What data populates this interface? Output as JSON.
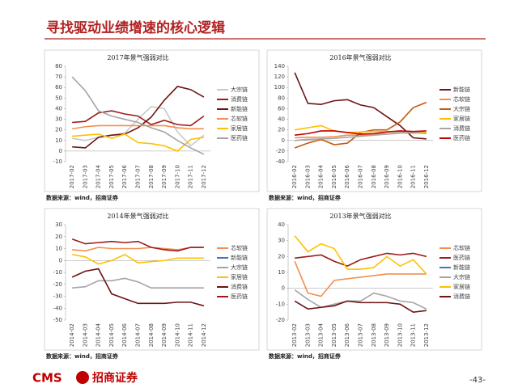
{
  "page_title": "寻找驱动业绩增速的核心逻辑",
  "footer": {
    "logo": "CMS",
    "brand": "招商证券",
    "page": "-43-"
  },
  "chart_data": [
    {
      "type": "line",
      "title": "2017年景气强弱对比",
      "source": "数据来源：wind，招商证券",
      "legend": "right",
      "categories": [
        "2017-02",
        "2017-03",
        "2017-04",
        "2017-05",
        "2017-06",
        "2017-07",
        "2017-08",
        "2017-09",
        "2017-10",
        "2017-11",
        "2017-12"
      ],
      "ylim": [
        -10,
        80
      ],
      "yticks": [
        -10,
        0,
        10,
        20,
        30,
        40,
        50,
        60,
        70,
        80
      ],
      "series": [
        {
          "name": "大宗链",
          "color": "#c9c9c9",
          "values": [
            12,
            10,
            13,
            15,
            17,
            30,
            42,
            40,
            18,
            5,
            15
          ]
        },
        {
          "name": "消费链",
          "color": "#9e1b1b",
          "values": [
            27,
            28,
            36,
            38,
            35,
            33,
            25,
            29,
            25,
            24,
            33
          ]
        },
        {
          "name": "新能链",
          "color": "#6e1414",
          "values": [
            4,
            3,
            13,
            15,
            16,
            22,
            32,
            48,
            61,
            58,
            51
          ]
        },
        {
          "name": "芯软链",
          "color": "#f28e4f",
          "values": [
            21,
            23,
            24,
            24,
            24,
            24,
            24,
            24,
            22,
            21,
            21
          ]
        },
        {
          "name": "家居链",
          "color": "#ffc000",
          "values": [
            14,
            15,
            16,
            12,
            16,
            8,
            7,
            5,
            0,
            11,
            13
          ]
        },
        {
          "name": "医药链",
          "color": "#a5a5a5",
          "values": [
            70,
            57,
            38,
            33,
            30,
            27,
            22,
            18,
            10,
            3,
            -3
          ]
        }
      ]
    },
    {
      "type": "line",
      "title": "2016年景气强弱对比",
      "source": "数据来源：wind，招商证券",
      "legend": "right",
      "categories": [
        "2016-02",
        "2016-03",
        "2016-04",
        "2016-05",
        "2016-06",
        "2016-07",
        "2016-08",
        "2016-09",
        "2016-10",
        "2016-11",
        "2016-12"
      ],
      "ylim": [
        -40,
        140
      ],
      "yticks": [
        -40,
        -20,
        0,
        20,
        40,
        60,
        80,
        100,
        120,
        140
      ],
      "series": [
        {
          "name": "新能链",
          "color": "#6e1414",
          "values": [
            128,
            70,
            68,
            75,
            77,
            67,
            62,
            45,
            28,
            5,
            3
          ]
        },
        {
          "name": "芯软链",
          "color": "#f28e4f",
          "values": [
            5,
            6,
            6,
            7,
            10,
            10,
            12,
            12,
            14,
            14,
            14
          ]
        },
        {
          "name": "大宗链",
          "color": "#c55a11",
          "values": [
            -14,
            -5,
            2,
            -8,
            -5,
            15,
            20,
            20,
            35,
            62,
            72
          ]
        },
        {
          "name": "家居链",
          "color": "#ffc000",
          "values": [
            20,
            24,
            28,
            18,
            15,
            16,
            17,
            17,
            17,
            16,
            15
          ]
        },
        {
          "name": "消费链",
          "color": "#a5a5a5",
          "values": [
            0,
            2,
            3,
            4,
            6,
            8,
            10,
            12,
            15,
            15,
            13
          ]
        },
        {
          "name": "医药链",
          "color": "#c00000",
          "values": [
            10,
            13,
            18,
            18,
            15,
            12,
            13,
            16,
            18,
            17,
            18
          ]
        }
      ]
    },
    {
      "type": "line",
      "title": "2014年景气强弱对比",
      "source": "数据来源：wind，招商证券",
      "legend": "right",
      "categories": [
        "2014-02",
        "2014-03",
        "2014-04",
        "2014-05",
        "2014-06",
        "2014-07",
        "2014-08",
        "2014-09",
        "2014-10",
        "2014-11",
        "2014-12"
      ],
      "ylim": [
        -50,
        30
      ],
      "yticks": [
        -50,
        -40,
        -30,
        -20,
        -10,
        0,
        10,
        20,
        30
      ],
      "series": [
        {
          "name": "芯软链",
          "color": "#f28e4f",
          "values": [
            9,
            8,
            11,
            10,
            10,
            10,
            11,
            10,
            9,
            11,
            11
          ]
        },
        {
          "name": "新能链",
          "color": "#4472c4",
          "values": [
            null,
            null,
            null,
            null,
            null,
            null,
            null,
            null,
            null,
            null,
            null
          ]
        },
        {
          "name": "大宗链",
          "color": "#a5a5a5",
          "values": [
            -23,
            -22,
            -17,
            -17,
            -15,
            -18,
            -23,
            -23,
            -23,
            -23,
            -23
          ]
        },
        {
          "name": "家居链",
          "color": "#ffc000",
          "values": [
            5,
            3,
            -3,
            0,
            5,
            -2,
            -1,
            0,
            2,
            2,
            2
          ]
        },
        {
          "name": "消费链",
          "color": "#6e1414",
          "values": [
            -14,
            -9,
            -7,
            -28,
            -32,
            -36,
            -36,
            -36,
            -35,
            -35,
            -38
          ]
        },
        {
          "name": "医药链",
          "color": "#9e1b1b",
          "values": [
            18,
            14,
            15,
            16,
            15,
            16,
            11,
            9,
            8,
            11,
            11
          ]
        }
      ]
    },
    {
      "type": "line",
      "title": "2013年景气强弱对比",
      "source": "数据来源：wind，招商证券",
      "legend": "right",
      "categories": [
        "2013-02",
        "2013-03",
        "2013-04",
        "2013-05",
        "2013-06",
        "2013-07",
        "2013-08",
        "2013-09",
        "2013-10",
        "2013-11",
        "2013-12"
      ],
      "ylim": [
        -20,
        40
      ],
      "yticks": [
        -20,
        -10,
        0,
        10,
        20,
        30,
        40
      ],
      "series": [
        {
          "name": "芯软链",
          "color": "#f28e4f",
          "values": [
            17,
            -3,
            -5,
            5,
            6,
            7,
            8,
            9,
            9,
            9,
            9
          ]
        },
        {
          "name": "医药链",
          "color": "#9e1b1b",
          "values": [
            19,
            20,
            21,
            17,
            14,
            18,
            20,
            22,
            21,
            22,
            20
          ]
        },
        {
          "name": "新能链",
          "color": "#4472c4",
          "values": [
            null,
            null,
            null,
            null,
            null,
            null,
            null,
            null,
            null,
            null,
            null
          ]
        },
        {
          "name": "大宗链",
          "color": "#a5a5a5",
          "values": [
            -1,
            -7,
            -12,
            -10,
            -8,
            -8,
            -3,
            -5,
            -8,
            -9,
            -13
          ]
        },
        {
          "name": "家居链",
          "color": "#ffc000",
          "values": [
            33,
            23,
            28,
            25,
            12,
            12,
            13,
            20,
            14,
            18,
            9
          ]
        },
        {
          "name": "消费链",
          "color": "#6e1414",
          "values": [
            -8,
            -13,
            -12,
            -11,
            -8,
            -9,
            -9,
            -9,
            -10,
            -15,
            -14
          ]
        }
      ]
    }
  ]
}
